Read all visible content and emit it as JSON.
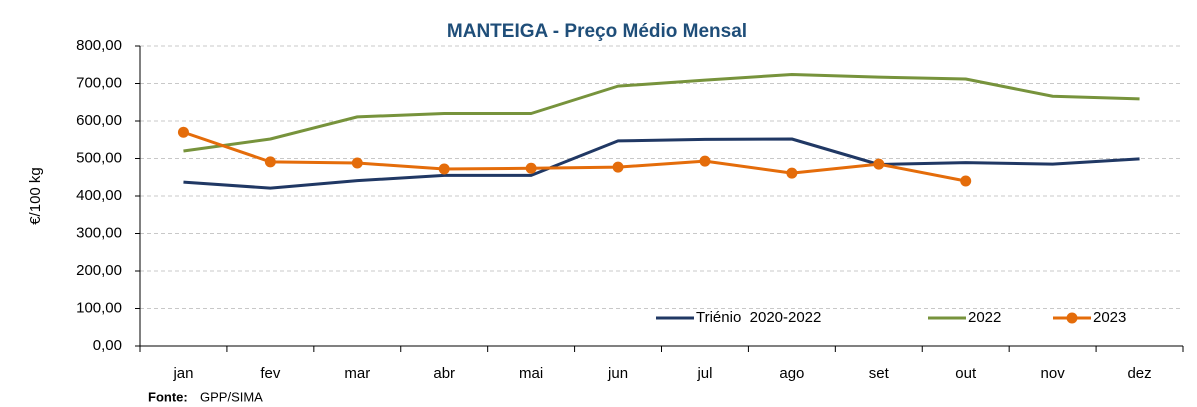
{
  "chart_data": {
    "type": "line",
    "title": "MANTEIGA - Preço Médio Mensal",
    "y_label": "€/100 kg",
    "source_label": "Fonte:",
    "source": "GPP/SIMA",
    "categories": [
      "jan",
      "fev",
      "mar",
      "abr",
      "mai",
      "jun",
      "jul",
      "ago",
      "set",
      "out",
      "nov",
      "dez"
    ],
    "series": [
      {
        "name": "Triénio  2020-2022",
        "color": "#203864",
        "markers": false,
        "values": [
          437,
          421,
          441,
          455,
          455,
          547,
          551,
          552,
          484,
          489,
          485,
          499
        ]
      },
      {
        "name": "2022",
        "color": "#77933c",
        "markers": false,
        "values": [
          520,
          552,
          611,
          620,
          620,
          693,
          709,
          724,
          717,
          712,
          666,
          659
        ]
      },
      {
        "name": "2023",
        "color": "#e46c0a",
        "markers": true,
        "values": [
          570,
          491,
          488,
          472,
          474,
          477,
          493,
          461,
          485,
          440,
          null,
          null
        ]
      }
    ],
    "ylim": [
      0,
      800
    ],
    "yticks": [
      {
        "value": 0,
        "label": "0,00"
      },
      {
        "value": 100,
        "label": "100,00"
      },
      {
        "value": 200,
        "label": "200,00"
      },
      {
        "value": 300,
        "label": "300,00"
      },
      {
        "value": 400,
        "label": "400,00"
      },
      {
        "value": 500,
        "label": "500,00"
      },
      {
        "value": 600,
        "label": "600,00"
      },
      {
        "value": 700,
        "label": "700,00"
      },
      {
        "value": 800,
        "label": "800,00"
      }
    ],
    "grid": true,
    "legend": "lower right"
  }
}
